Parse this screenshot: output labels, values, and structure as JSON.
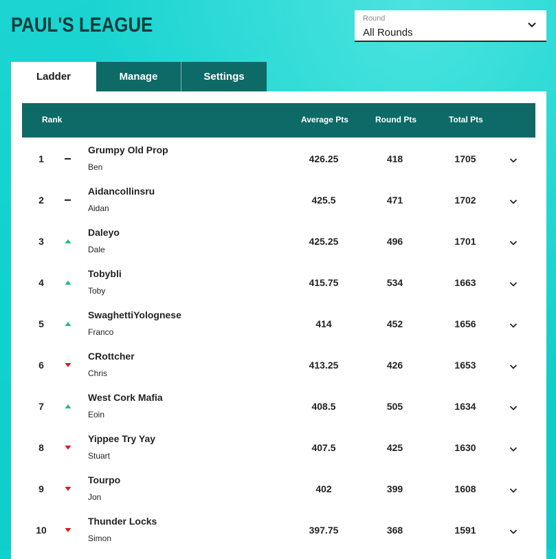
{
  "header": {
    "title": "PAUL'S LEAGUE"
  },
  "round_select": {
    "label": "Round",
    "value": "All Rounds",
    "icon": "chevron-down-icon"
  },
  "tabs": [
    {
      "label": "Ladder",
      "active": true
    },
    {
      "label": "Manage",
      "active": false
    },
    {
      "label": "Settings",
      "active": false
    }
  ],
  "table": {
    "columns": {
      "rank": "Rank",
      "average": "Average Pts",
      "round": "Round Pts",
      "total": "Total Pts"
    },
    "rows": [
      {
        "rank": "1",
        "movement": "same",
        "team": "Grumpy Old Prop",
        "owner": "Ben",
        "average": "426.25",
        "round": "418",
        "total": "1705"
      },
      {
        "rank": "2",
        "movement": "same",
        "team": "Aidancollinsru",
        "owner": "Aidan",
        "average": "425.5",
        "round": "471",
        "total": "1702"
      },
      {
        "rank": "3",
        "movement": "up",
        "team": "Daleyo",
        "owner": "Dale",
        "average": "425.25",
        "round": "496",
        "total": "1701"
      },
      {
        "rank": "4",
        "movement": "up",
        "team": "Tobybli",
        "owner": "Toby",
        "average": "415.75",
        "round": "534",
        "total": "1663"
      },
      {
        "rank": "5",
        "movement": "up",
        "team": "SwaghettiYolognese",
        "owner": "Franco",
        "average": "414",
        "round": "452",
        "total": "1656"
      },
      {
        "rank": "6",
        "movement": "down",
        "team": "CRottcher",
        "owner": "Chris",
        "average": "413.25",
        "round": "426",
        "total": "1653"
      },
      {
        "rank": "7",
        "movement": "up",
        "team": "West Cork Mafia",
        "owner": "Eoin",
        "average": "408.5",
        "round": "505",
        "total": "1634"
      },
      {
        "rank": "8",
        "movement": "down",
        "team": "Yippee Try Yay",
        "owner": "Stuart",
        "average": "407.5",
        "round": "425",
        "total": "1630"
      },
      {
        "rank": "9",
        "movement": "down",
        "team": "Tourpo",
        "owner": "Jon",
        "average": "402",
        "round": "399",
        "total": "1608"
      },
      {
        "rank": "10",
        "movement": "down",
        "team": "Thunder Locks",
        "owner": "Simon",
        "average": "397.75",
        "round": "368",
        "total": "1591"
      }
    ]
  },
  "colors": {
    "background": "#0fd2cf",
    "accent": "#0e6a66",
    "title": "#0b3d3b",
    "up": "#1fbf7a",
    "down": "#e0191f"
  }
}
